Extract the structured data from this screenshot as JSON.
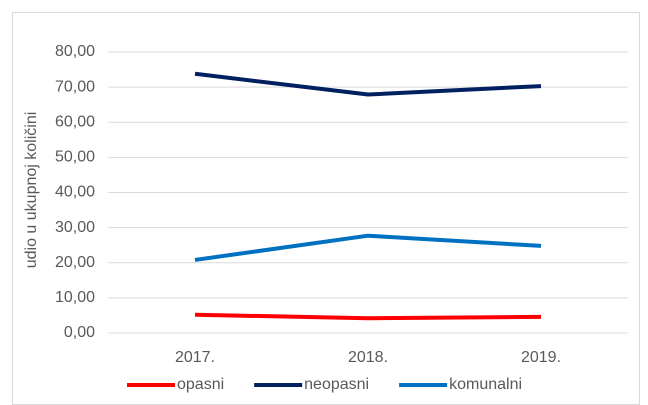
{
  "chart_data": {
    "type": "line",
    "y_axis_label": "udio u ukupnoj količini",
    "categories": [
      "2017.",
      "2018.",
      "2019."
    ],
    "series": [
      {
        "name": "opasni",
        "color": "#ff0000",
        "values": [
          5.2,
          4.2,
          4.6
        ]
      },
      {
        "name": "neopasni",
        "color": "#002060",
        "values": [
          73.8,
          67.9,
          70.3
        ]
      },
      {
        "name": "komunalni",
        "color": "#0070c0",
        "values": [
          20.8,
          27.7,
          24.8
        ]
      }
    ],
    "ylim": [
      0,
      80
    ],
    "yticks": [
      {
        "value": 0,
        "label": "0,00"
      },
      {
        "value": 10,
        "label": "10,00"
      },
      {
        "value": 20,
        "label": "20,00"
      },
      {
        "value": 30,
        "label": "30,00"
      },
      {
        "value": 40,
        "label": "40,00"
      },
      {
        "value": 50,
        "label": "50,00"
      },
      {
        "value": 60,
        "label": "60,00"
      },
      {
        "value": 70,
        "label": "70,00"
      },
      {
        "value": 80,
        "label": "80,00"
      }
    ],
    "grid": true,
    "legend": "bottom"
  }
}
